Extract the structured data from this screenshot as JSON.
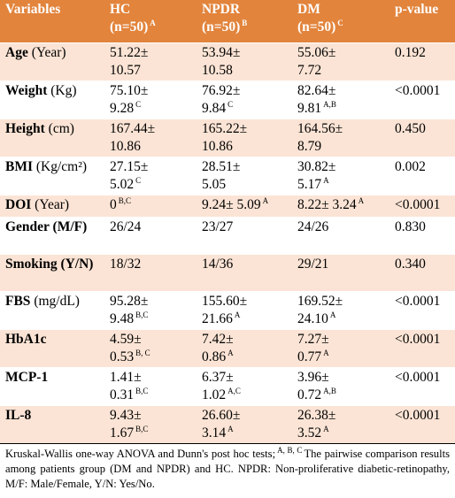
{
  "header": {
    "columns": [
      {
        "title": "Variables"
      },
      {
        "title": "HC",
        "n": "(n=50)",
        "sup": "A"
      },
      {
        "title": "NPDR",
        "n": "(n=50)",
        "sup": "B"
      },
      {
        "title": "DM",
        "n": "(n=50)",
        "sup": "C"
      },
      {
        "title": "p-value"
      }
    ]
  },
  "rows": [
    {
      "name": "Age",
      "unit": "(Year)",
      "cells": [
        [
          {
            "text": "51.22±"
          },
          {
            "text": "10.57"
          }
        ],
        [
          {
            "text": "53.94±"
          },
          {
            "text": "10.58"
          }
        ],
        [
          {
            "text": "55.06±"
          },
          {
            "text": "7.72"
          }
        ]
      ],
      "p": "0.192"
    },
    {
      "name": "Weight",
      "unit": "(Kg)",
      "cells": [
        [
          {
            "text": "75.10±"
          },
          {
            "text": "9.28",
            "sup": "C"
          }
        ],
        [
          {
            "text": "76.92±"
          },
          {
            "text": "9.84",
            "sup": "C"
          }
        ],
        [
          {
            "text": "82.64±"
          },
          {
            "text": "9.81",
            "sup": "A,B"
          }
        ]
      ],
      "p": "<0.0001"
    },
    {
      "name": "Height",
      "unit": "(cm)",
      "cells": [
        [
          {
            "text": "167.44±"
          },
          {
            "text": "10.86"
          }
        ],
        [
          {
            "text": "165.22±"
          },
          {
            "text": "10.86"
          }
        ],
        [
          {
            "text": "164.56±"
          },
          {
            "text": "8.79"
          }
        ]
      ],
      "p": "0.450"
    },
    {
      "name": "BMI",
      "unit": "(Kg/cm²)",
      "cells": [
        [
          {
            "text": "27.15±"
          },
          {
            "text": "5.02",
            "sup": "C"
          }
        ],
        [
          {
            "text": "28.51±"
          },
          {
            "text": "5.05"
          }
        ],
        [
          {
            "text": "30.82±"
          },
          {
            "text": "5.17",
            "sup": "A"
          }
        ]
      ],
      "p": "0.002"
    },
    {
      "name": "DOI",
      "unit": "(Year)",
      "cells": [
        [
          {
            "text": "0",
            "sup": "B,C"
          }
        ],
        [
          {
            "text": "9.24± 5.09",
            "sup": "A"
          }
        ],
        [
          {
            "text": "8.22± 3.24",
            "sup": "A"
          }
        ]
      ],
      "p": "<0.0001"
    },
    {
      "name": "Gender (M/F)",
      "cells": [
        [
          {
            "text": "26/24"
          }
        ],
        [
          {
            "text": "23/27"
          }
        ],
        [
          {
            "text": "24/26"
          }
        ]
      ],
      "p": "0.830"
    },
    {
      "name": "Smoking (Y/N)",
      "cells": [
        [
          {
            "text": "18/32"
          }
        ],
        [
          {
            "text": "14/36"
          }
        ],
        [
          {
            "text": "29/21"
          }
        ]
      ],
      "p": "0.340"
    },
    {
      "name": "FBS",
      "unit": "(mg/dL)",
      "cells": [
        [
          {
            "text": "95.28±"
          },
          {
            "text": "9.48",
            "sup": "B,C"
          }
        ],
        [
          {
            "text": "155.60±"
          },
          {
            "text": "21.66",
            "sup": "A"
          }
        ],
        [
          {
            "text": "169.52±"
          },
          {
            "text": "24.10",
            "sup": "A"
          }
        ]
      ],
      "p": "<0.0001"
    },
    {
      "name": "HbA1c",
      "cells": [
        [
          {
            "text": "4.59±"
          },
          {
            "text": "0.53",
            "sup": "B, C"
          }
        ],
        [
          {
            "text": "7.42±"
          },
          {
            "text": "0.86",
            "sup": "A"
          }
        ],
        [
          {
            "text": "7.27±"
          },
          {
            "text": "0.77",
            "sup": "A"
          }
        ]
      ],
      "p": "<0.0001"
    },
    {
      "name": "MCP-1",
      "cells": [
        [
          {
            "text": "1.41±"
          },
          {
            "text": "0.31",
            "sup": "B,C"
          }
        ],
        [
          {
            "text": "6.37±"
          },
          {
            "text": "1.02",
            "sup": "A,C"
          }
        ],
        [
          {
            "text": "3.96±"
          },
          {
            "text": "0.72",
            "sup": "A,B"
          }
        ]
      ],
      "p": "<0.0001"
    },
    {
      "name": "IL-8",
      "cells": [
        [
          {
            "text": "9.43±"
          },
          {
            "text": "1.67",
            "sup": "B,C"
          }
        ],
        [
          {
            "text": "26.60±"
          },
          {
            "text": "3.14",
            "sup": "A"
          }
        ],
        [
          {
            "text": "26.38±"
          },
          {
            "text": "3.52",
            "sup": "A"
          }
        ]
      ],
      "p": "<0.0001"
    }
  ],
  "footer": {
    "before": "Kruskal-Wallis one-way ANOVA and Dunn's post hoc tests;",
    "sup": "A, B, C",
    "after": "The pairwise comparison results among patients group (DM and NPDR) and HC. NPDR: Non-proliferative diabetic-retinopathy, M/F: Male/Female, Y/N: Yes/No."
  }
}
